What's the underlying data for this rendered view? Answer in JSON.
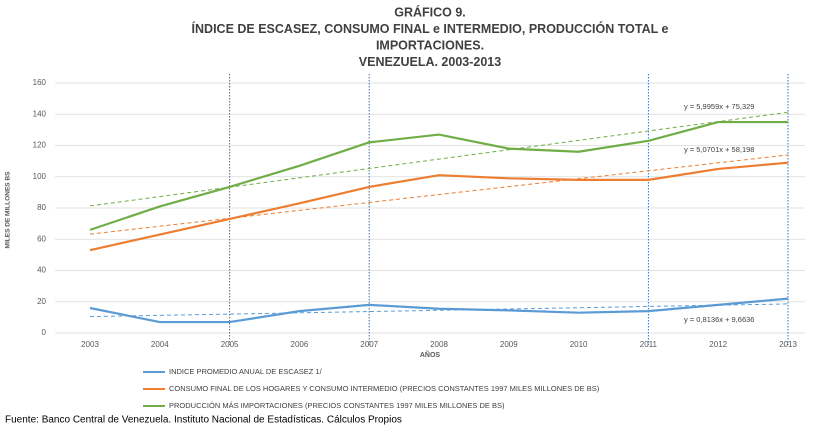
{
  "chart_data": {
    "type": "line",
    "title_lines": [
      "GRÁFICO 9.",
      "ÍNDICE DE ESCASEZ, CONSUMO FINAL e INTERMEDIO, PRODUCCIÓN TOTAL e",
      "IMPORTACIONES.",
      "VENEZUELA. 2003-2013"
    ],
    "y_label": "MILES DE MILLONES BS",
    "x_label": "AÑOS",
    "categories": [
      "2003",
      "2004",
      "2005",
      "2006",
      "2007",
      "2008",
      "2009",
      "2010",
      "2011",
      "2012",
      "2013"
    ],
    "series": [
      {
        "name": "INDICE PROMEDIO ANUAL DE ESCASEZ 1/",
        "color": "#5b9bd5",
        "values": [
          16,
          7,
          7,
          14,
          18,
          15.5,
          14.5,
          13,
          14,
          18,
          22
        ],
        "trendline": {
          "slope": 0.8136,
          "intercept": 9.6636,
          "label": "y = 0,8136x + 9,6636"
        }
      },
      {
        "name": "CONSUMO FINAL DE LOS HOGARES Y CONSUMO INTERMEDIO (PRECIOS CONSTANTES 1997 MILES MILLONES DE BS)",
        "color": "#ed7d31",
        "values": [
          53,
          63,
          73,
          83,
          93.5,
          101,
          99,
          98,
          98,
          105,
          109
        ],
        "trendline": {
          "slope": 5.0701,
          "intercept": 58.198,
          "label": "y = 5,0701x + 58,198"
        }
      },
      {
        "name": "PRODUCCIÓN MÁS IMPORTACIONES (PRECIOS CONSTANTES 1997 MILES MILLONES DE BS)",
        "color": "#70ad47",
        "values": [
          66,
          81,
          93.5,
          107,
          122,
          127,
          118,
          116,
          123,
          135,
          135
        ],
        "trendline": {
          "slope": 5.9959,
          "intercept": 75.329,
          "label": "y = 5,9959x + 75,329"
        }
      }
    ],
    "reference_lines": [
      "2005",
      "2007",
      "2011",
      "2013"
    ],
    "ylim": [
      0,
      160
    ],
    "yticks": [
      0,
      20,
      40,
      60,
      80,
      100,
      120,
      140,
      160
    ],
    "grid": true,
    "source": "Fuente: Banco Central de Venezuela. Instituto Nacional de Estadísticas. Cálculos Propios"
  }
}
